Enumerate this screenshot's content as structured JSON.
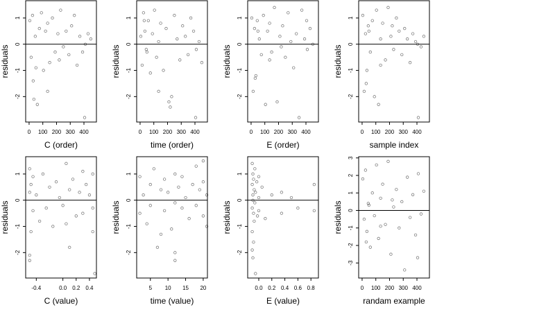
{
  "chart_data": [
    {
      "type": "scatter",
      "xlabel": "C (order)",
      "ylabel": "residuals",
      "hline": 0,
      "color": "#555555",
      "xlim": [
        -25,
        491
      ],
      "ylim": [
        -2.97,
        1.66
      ],
      "xticks": [
        0,
        100,
        200,
        300,
        400
      ],
      "yticks": [
        -2,
        -1,
        0,
        1
      ],
      "x": [
        5,
        15,
        25,
        35,
        45,
        60,
        75,
        90,
        105,
        120,
        135,
        150,
        170,
        190,
        210,
        230,
        250,
        270,
        290,
        310,
        330,
        350,
        370,
        390,
        410,
        430,
        450,
        30,
        50,
        135,
        405,
        220
      ],
      "y": [
        0.9,
        -0.5,
        1.1,
        -2.1,
        0.3,
        -2.3,
        0.6,
        1.2,
        -1.0,
        0.5,
        0.8,
        -0.7,
        1.0,
        -0.3,
        0.4,
        1.3,
        -0.1,
        0.5,
        -0.4,
        0.7,
        1.1,
        -0.8,
        0.3,
        -0.3,
        0.0,
        0.4,
        0.2,
        -1.4,
        -0.9,
        -1.8,
        -2.8,
        -0.6
      ]
    },
    {
      "type": "scatter",
      "xlabel": "time (order)",
      "ylabel": "residuals",
      "hline": 0,
      "color": "#555555",
      "xlim": [
        -25,
        491
      ],
      "ylim": [
        -2.97,
        1.66
      ],
      "xticks": [
        0,
        100,
        200,
        300,
        400
      ],
      "yticks": [
        -2,
        -1,
        0,
        1
      ],
      "x": [
        5,
        15,
        25,
        35,
        45,
        60,
        75,
        90,
        105,
        120,
        135,
        150,
        170,
        190,
        210,
        230,
        250,
        270,
        290,
        310,
        330,
        350,
        370,
        390,
        410,
        430,
        450,
        30,
        50,
        135,
        405,
        220
      ],
      "y": [
        0.3,
        -0.8,
        1.2,
        0.5,
        -0.2,
        0.9,
        -1.1,
        0.4,
        1.3,
        -0.5,
        0.1,
        0.8,
        -1.0,
        0.6,
        -2.2,
        -2.0,
        1.1,
        0.2,
        -0.6,
        0.7,
        0.3,
        -0.4,
        1.0,
        0.5,
        -0.2,
        0.1,
        -0.7,
        0.9,
        -0.3,
        -1.8,
        -2.8,
        -2.4
      ]
    },
    {
      "type": "scatter",
      "xlabel": "E (order)",
      "ylabel": "residuals",
      "hline": 0,
      "color": "#555555",
      "xlim": [
        -25,
        491
      ],
      "ylim": [
        -2.97,
        1.66
      ],
      "xticks": [
        0,
        100,
        200,
        300,
        400
      ],
      "yticks": [
        -2,
        -1,
        0,
        1
      ],
      "x": [
        5,
        15,
        25,
        35,
        45,
        60,
        75,
        90,
        105,
        120,
        135,
        150,
        170,
        190,
        210,
        230,
        250,
        270,
        290,
        310,
        330,
        350,
        370,
        390,
        410,
        430,
        450,
        30,
        50,
        135,
        405,
        220
      ],
      "y": [
        1.0,
        -1.8,
        0.6,
        -1.2,
        0.9,
        0.2,
        -0.4,
        1.1,
        -2.3,
        0.5,
        0.8,
        -0.3,
        1.4,
        -2.2,
        0.3,
        0.7,
        -0.5,
        1.2,
        0.1,
        -0.9,
        0.4,
        -2.8,
        1.3,
        0.2,
        -0.2,
        0.6,
        0.0,
        -1.3,
        0.5,
        -0.6,
        0.9,
        -0.1
      ]
    },
    {
      "type": "scatter",
      "xlabel": "sample index",
      "ylabel": "residuals",
      "hline": 0,
      "color": "#555555",
      "xlim": [
        -25,
        491
      ],
      "ylim": [
        -2.97,
        1.66
      ],
      "xticks": [
        0,
        100,
        200,
        300,
        400
      ],
      "yticks": [
        -2,
        -1,
        0,
        1
      ],
      "x": [
        5,
        15,
        25,
        35,
        45,
        60,
        75,
        90,
        105,
        120,
        135,
        150,
        170,
        190,
        210,
        230,
        250,
        270,
        290,
        310,
        330,
        350,
        370,
        390,
        410,
        430,
        450,
        30,
        50,
        135,
        405,
        220
      ],
      "y": [
        1.1,
        -1.8,
        0.4,
        -1.0,
        0.7,
        -0.3,
        0.9,
        -2.0,
        1.3,
        -2.3,
        0.2,
        0.8,
        -0.6,
        1.4,
        0.3,
        -0.2,
        1.0,
        0.5,
        -0.4,
        0.6,
        0.2,
        -0.7,
        0.4,
        0.1,
        -2.8,
        -0.1,
        0.3,
        -1.5,
        0.5,
        -0.8,
        0.0,
        0.7
      ]
    },
    {
      "type": "scatter",
      "xlabel": "C (value)",
      "ylabel": "residuals",
      "hline": 0,
      "color": "#555555",
      "xlim": [
        -0.56,
        0.505
      ],
      "ylim": [
        -2.97,
        1.66
      ],
      "xticks": [
        -0.4,
        {
          "value": 0,
          "label": "0.0"
        },
        0.2,
        0.4
      ],
      "yticks": [
        -2,
        -1,
        0,
        1
      ],
      "x": [
        -0.5,
        -0.5,
        -0.5,
        -0.5,
        -0.48,
        -0.48,
        -0.45,
        -0.45,
        -0.4,
        -0.35,
        -0.3,
        -0.25,
        -0.2,
        -0.15,
        -0.1,
        -0.05,
        0.0,
        0.05,
        0.1,
        0.1,
        0.15,
        0.2,
        0.25,
        0.3,
        0.3,
        0.35,
        0.4,
        0.45,
        0.45,
        0.45,
        0.48,
        0.05
      ],
      "y": [
        1.2,
        0.3,
        -2.1,
        -2.3,
        -1.2,
        0.6,
        -0.4,
        0.9,
        0.2,
        -0.8,
        1.0,
        -0.3,
        0.5,
        -1.0,
        0.7,
        0.1,
        -0.2,
        1.4,
        -1.8,
        0.4,
        0.8,
        -0.6,
        0.3,
        1.1,
        -0.5,
        0.6,
        0.2,
        1.0,
        -0.3,
        -1.2,
        -2.8,
        -0.9
      ]
    },
    {
      "type": "scatter",
      "xlabel": "time (value)",
      "ylabel": "residuals",
      "hline": 0,
      "color": "#555555",
      "xlim": [
        1.1,
        21.2
      ],
      "ylim": [
        -2.97,
        1.66
      ],
      "xticks": [
        5,
        10,
        15,
        20
      ],
      "yticks": [
        -2,
        -1,
        0,
        1
      ],
      "x": [
        2,
        2,
        3,
        4,
        5,
        5,
        6,
        7,
        8,
        9,
        9,
        10,
        11,
        12,
        12,
        12,
        13,
        14,
        14,
        15,
        16,
        17,
        18,
        18,
        19,
        20,
        20,
        21,
        21,
        8,
        12,
        20
      ],
      "y": [
        0.9,
        -0.5,
        0.2,
        -0.9,
        0.6,
        -0.2,
        1.2,
        -1.8,
        0.4,
        0.8,
        -0.4,
        0.3,
        -1.1,
        1.0,
        -2.3,
        -2.0,
        0.5,
        -0.3,
        0.9,
        0.1,
        -0.7,
        0.6,
        1.3,
        -0.2,
        0.4,
        0.7,
        -0.6,
        0.2,
        -1.0,
        -1.3,
        -0.1,
        1.5
      ]
    },
    {
      "type": "scatter",
      "xlabel": "E (value)",
      "ylabel": "residuals",
      "hline": 0,
      "color": "#555555",
      "xlim": [
        -0.17,
        0.915
      ],
      "ylim": [
        -2.97,
        1.66
      ],
      "xticks": [
        {
          "value": 0,
          "label": "0.0"
        },
        0.2,
        0.4,
        0.6,
        0.8
      ],
      "yticks": [
        -2,
        -1,
        0,
        1
      ],
      "x": [
        -0.1,
        -0.1,
        -0.1,
        -0.1,
        -0.09,
        -0.09,
        -0.09,
        -0.08,
        -0.08,
        -0.08,
        -0.07,
        -0.07,
        -0.06,
        -0.06,
        -0.05,
        -0.05,
        -0.03,
        -0.02,
        0.0,
        0.0,
        0.0,
        0.05,
        0.1,
        0.2,
        0.35,
        0.35,
        0.5,
        0.6,
        0.85,
        0.85,
        -0.1,
        -0.09
      ],
      "y": [
        1.4,
        0.6,
        -0.3,
        -1.2,
        1.0,
        0.2,
        -2.2,
        0.8,
        -0.5,
        -1.6,
        0.4,
        -0.8,
        1.2,
        -0.1,
        0.3,
        -2.8,
        0.7,
        -0.6,
        0.9,
        0.1,
        -0.4,
        0.5,
        -0.7,
        0.2,
        0.3,
        -0.5,
        0.1,
        -0.3,
        0.6,
        -0.4,
        -1.9,
        0.0
      ]
    },
    {
      "type": "scatter",
      "xlabel": "randam example",
      "ylabel": "residuals",
      "hline": 0,
      "color": "#555555",
      "xlim": [
        -25,
        491
      ],
      "ylim": [
        -3.86,
        3.07
      ],
      "xticks": [
        0,
        100,
        200,
        300,
        400
      ],
      "yticks": [
        -3,
        -2,
        -1,
        0,
        1,
        2,
        3
      ],
      "x": [
        5,
        15,
        25,
        35,
        45,
        60,
        75,
        90,
        105,
        120,
        135,
        150,
        170,
        190,
        210,
        230,
        250,
        270,
        290,
        310,
        330,
        350,
        370,
        390,
        410,
        430,
        450,
        30,
        50,
        135,
        405,
        220
      ],
      "y": [
        1.8,
        -0.5,
        2.3,
        -1.2,
        0.4,
        -2.1,
        1.0,
        -0.3,
        2.6,
        -1.6,
        0.7,
        1.5,
        -0.8,
        2.8,
        -2.5,
        0.2,
        1.2,
        -1.0,
        0.5,
        -3.4,
        1.9,
        -0.4,
        0.9,
        -1.4,
        2.1,
        -0.2,
        1.1,
        -1.8,
        0.3,
        -0.9,
        -2.7,
        0.6
      ]
    }
  ]
}
